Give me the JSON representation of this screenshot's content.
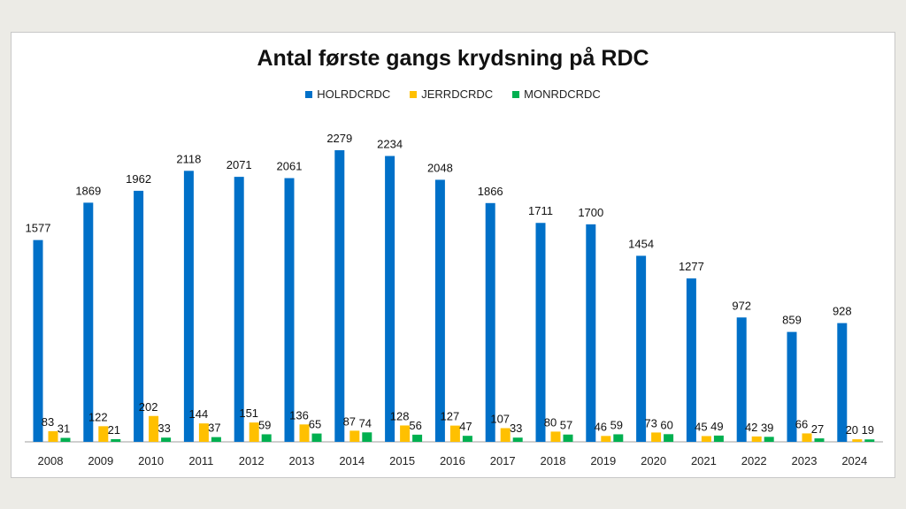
{
  "chart_data": {
    "type": "bar",
    "title": "Antal første gangs krydsning på RDC",
    "categories": [
      "2008",
      "2009",
      "2010",
      "2011",
      "2012",
      "2013",
      "2014",
      "2015",
      "2016",
      "2017",
      "2018",
      "2019",
      "2020",
      "2021",
      "2022",
      "2023",
      "2024"
    ],
    "series": [
      {
        "name": "HOLRDCRDC",
        "color": "#0070c8",
        "values": [
          1577,
          1869,
          1962,
          2118,
          2071,
          2061,
          2279,
          2234,
          2048,
          1866,
          1711,
          1700,
          1454,
          1277,
          972,
          859,
          928
        ]
      },
      {
        "name": "JERRDCRDC",
        "color": "#ffc000",
        "values": [
          83,
          122,
          202,
          144,
          151,
          136,
          87,
          128,
          127,
          107,
          80,
          46,
          73,
          45,
          42,
          66,
          20
        ]
      },
      {
        "name": "MONRDCRDC",
        "color": "#00b050",
        "values": [
          31,
          21,
          33,
          37,
          59,
          65,
          74,
          56,
          47,
          33,
          57,
          59,
          60,
          49,
          39,
          27,
          19
        ]
      }
    ],
    "data_labels": true,
    "grid": false,
    "legend": "top",
    "ylim": [
      0,
      2279
    ]
  }
}
